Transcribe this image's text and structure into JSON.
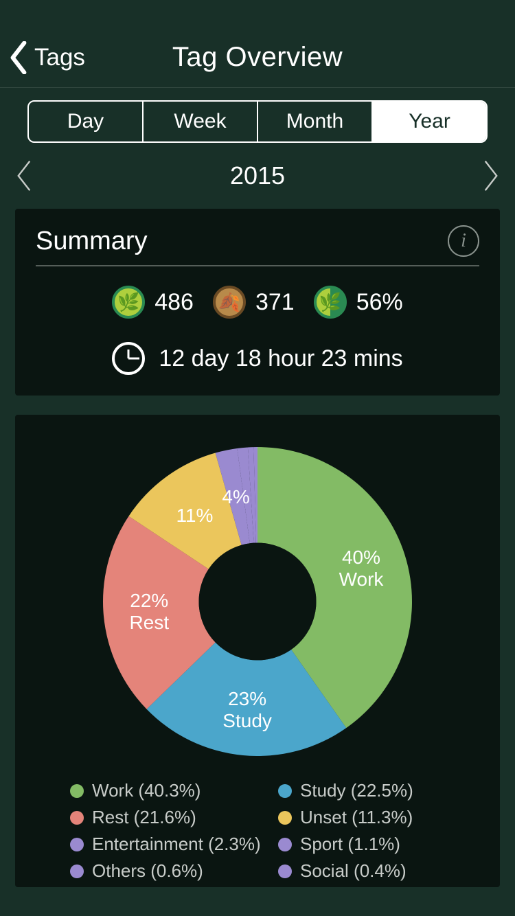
{
  "colors": {
    "page_bg": "#183028",
    "card_bg": "#0a1511",
    "text": "#ffffff",
    "muted": "#c8ccc9",
    "divider": "#555e59"
  },
  "nav": {
    "back_label": "Tags",
    "title": "Tag Overview"
  },
  "segmented": {
    "options": [
      "Day",
      "Week",
      "Month",
      "Year"
    ],
    "active_index": 3
  },
  "period": {
    "label": "2015"
  },
  "summary": {
    "title": "Summary",
    "healthy_trees": "486",
    "dead_trees": "371",
    "success_rate": "56%",
    "total_time": "12 day 18 hour 23 mins"
  },
  "chart": {
    "type": "donut",
    "inner_radius_ratio": 0.38,
    "background_color": "#0a1511",
    "slices": [
      {
        "name": "Work",
        "value": 40.3,
        "color": "#83bb65",
        "label_pct": "40%",
        "label_name": "Work"
      },
      {
        "name": "Study",
        "value": 22.5,
        "color": "#4ba6cb",
        "label_pct": "23%",
        "label_name": "Study"
      },
      {
        "name": "Rest",
        "value": 21.6,
        "color": "#e4847a",
        "label_pct": "22%",
        "label_name": "Rest"
      },
      {
        "name": "Unset",
        "value": 11.3,
        "color": "#ebc65c",
        "label_pct": "11%",
        "label_name": ""
      },
      {
        "name": "Entertainment",
        "value": 2.3,
        "color": "#9a8ad0",
        "label_pct": "4%",
        "label_name": ""
      },
      {
        "name": "Sport",
        "value": 1.1,
        "color": "#9a8ad0",
        "label_pct": "",
        "label_name": ""
      },
      {
        "name": "Others",
        "value": 0.6,
        "color": "#9a8ad0",
        "label_pct": "",
        "label_name": ""
      },
      {
        "name": "Social",
        "value": 0.4,
        "color": "#9a8ad0",
        "label_pct": "",
        "label_name": ""
      }
    ],
    "label_fontsize": 28,
    "legend_fontsize": 26
  },
  "legend": [
    {
      "name": "Work",
      "pct": "40.3%",
      "color": "#83bb65"
    },
    {
      "name": "Study",
      "pct": "22.5%",
      "color": "#4ba6cb"
    },
    {
      "name": "Rest",
      "pct": "21.6%",
      "color": "#e4847a"
    },
    {
      "name": "Unset",
      "pct": "11.3%",
      "color": "#ebc65c"
    },
    {
      "name": "Entertainment",
      "pct": "2.3%",
      "color": "#9a8ad0"
    },
    {
      "name": "Sport",
      "pct": "1.1%",
      "color": "#9a8ad0"
    },
    {
      "name": "Others",
      "pct": "0.6%",
      "color": "#9a8ad0"
    },
    {
      "name": "Social",
      "pct": "0.4%",
      "color": "#9a8ad0"
    }
  ]
}
